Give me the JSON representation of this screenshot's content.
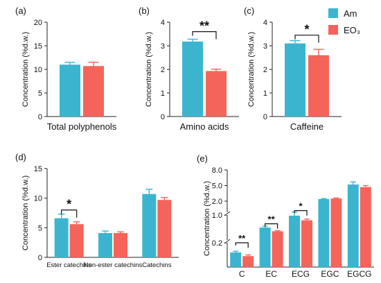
{
  "legend": {
    "entries": [
      {
        "name": "Am",
        "color": "#3bb5cf"
      },
      {
        "name": "EO₃",
        "color": "#f4645a"
      }
    ]
  },
  "chart_data": [
    {
      "id": "a",
      "panel_label": "(a)",
      "type": "bar",
      "ylabel": "Concentration (%d.w.)",
      "xlabel": "",
      "ylim": [
        0,
        20
      ],
      "yticks": [
        0,
        5,
        10,
        15,
        20
      ],
      "categories": [
        "Total polyphenols"
      ],
      "series": [
        {
          "name": "Am",
          "values": [
            11.0
          ],
          "errors": [
            0.5
          ]
        },
        {
          "name": "EO₃",
          "values": [
            10.7
          ],
          "errors": [
            0.8
          ]
        }
      ],
      "significance": []
    },
    {
      "id": "b",
      "panel_label": "(b)",
      "type": "bar",
      "ylabel": "Concentration (%d.w.)",
      "xlabel": "",
      "ylim": [
        0,
        4
      ],
      "yticks": [
        0,
        1,
        2,
        3,
        4
      ],
      "categories": [
        "Amino acids"
      ],
      "series": [
        {
          "name": "Am",
          "values": [
            3.18
          ],
          "errors": [
            0.1
          ]
        },
        {
          "name": "EO₃",
          "values": [
            1.93
          ],
          "errors": [
            0.08
          ]
        }
      ],
      "significance": [
        {
          "category": "Amino acids",
          "label": "**",
          "height": 3.6
        }
      ]
    },
    {
      "id": "c",
      "panel_label": "(c)",
      "type": "bar",
      "ylabel": "Concentration (%d.w.)",
      "xlabel": "",
      "ylim": [
        0,
        4
      ],
      "yticks": [
        0,
        1,
        2,
        3,
        4
      ],
      "categories": [
        "Caffeine"
      ],
      "series": [
        {
          "name": "Am",
          "values": [
            3.1
          ],
          "errors": [
            0.12
          ]
        },
        {
          "name": "EO₃",
          "values": [
            2.6
          ],
          "errors": [
            0.25
          ]
        }
      ],
      "significance": [
        {
          "category": "Caffeine",
          "label": "*",
          "height": 3.45
        }
      ]
    },
    {
      "id": "d",
      "panel_label": "(d)",
      "type": "bar",
      "ylabel": "Concentration (%d.w.)",
      "xlabel": "",
      "ylim": [
        0,
        15
      ],
      "yticks": [
        0,
        5,
        10,
        15
      ],
      "categories": [
        "Ester catechins",
        "Non-ester catechins",
        "Catechins"
      ],
      "series": [
        {
          "name": "Am",
          "values": [
            6.6,
            4.1,
            10.7
          ],
          "errors": [
            0.7,
            0.35,
            0.8
          ]
        },
        {
          "name": "EO₃",
          "values": [
            5.6,
            4.1,
            9.7
          ],
          "errors": [
            0.4,
            0.2,
            0.4
          ]
        }
      ],
      "significance": [
        {
          "category": "Ester catechins",
          "label": "*",
          "height": 8.0
        }
      ]
    },
    {
      "id": "e",
      "panel_label": "(e)",
      "type": "bar",
      "ylabel": "Concentration (%d.w.)",
      "xlabel": "",
      "broken_axis": true,
      "yticks": [
        0.2,
        1.0,
        2.0,
        5.0,
        8.0
      ],
      "categories": [
        "C",
        "EC",
        "ECG",
        "EGC",
        "EGCG"
      ],
      "series": [
        {
          "name": "Am",
          "values": [
            0.12,
            0.6,
            0.98,
            2.4,
            5.2
          ],
          "errors": [
            0.01,
            0.04,
            0.04,
            0.1,
            0.5
          ]
        },
        {
          "name": "EO₃",
          "values": [
            0.09,
            0.48,
            0.83,
            2.5,
            4.7
          ],
          "errors": [
            0.01,
            0.02,
            0.04,
            0.1,
            0.3
          ]
        }
      ],
      "significance": [
        {
          "category": "C",
          "label": "**",
          "height": 0.2
        },
        {
          "category": "EC",
          "label": "**",
          "height": 0.72
        },
        {
          "category": "ECG",
          "label": "*",
          "height": 1.15
        }
      ]
    }
  ]
}
